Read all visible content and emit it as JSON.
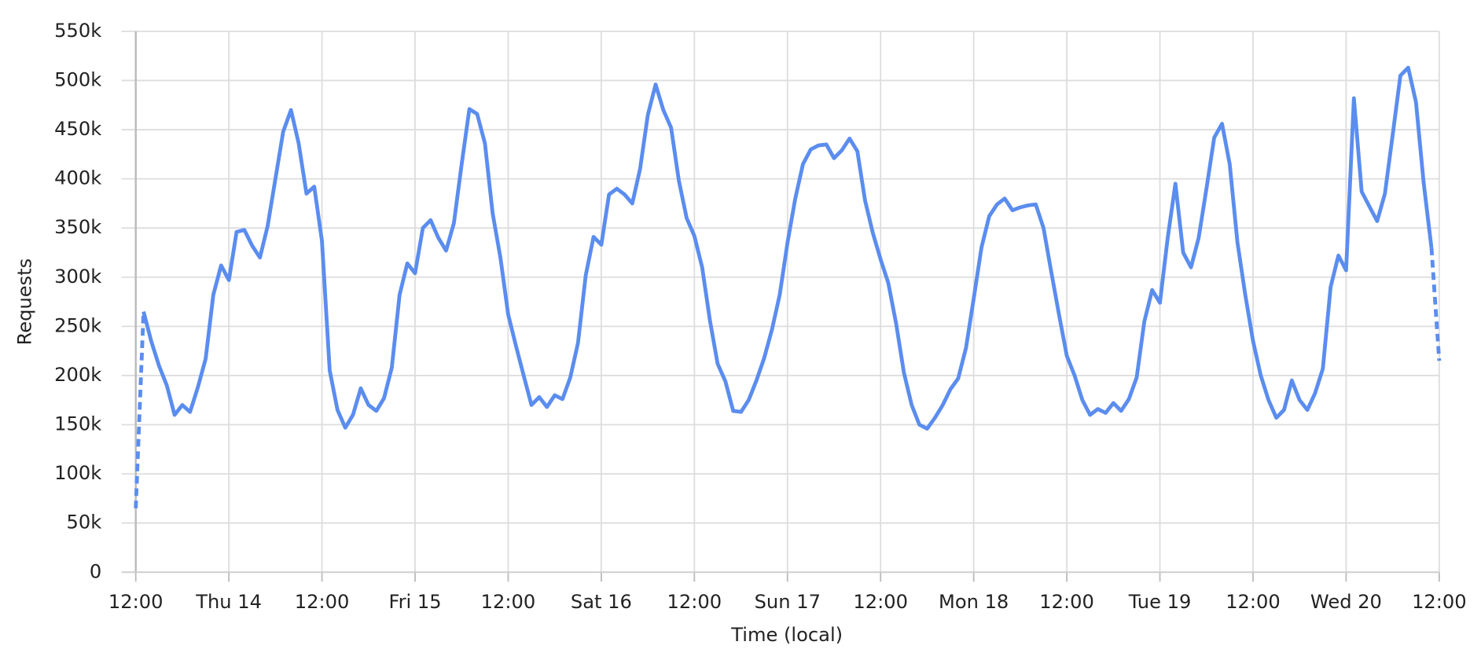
{
  "chart_data": {
    "type": "line",
    "x_label": "Time (local)",
    "y_label": "Requests",
    "x": [
      0,
      1,
      2,
      3,
      4,
      5,
      6,
      7,
      8,
      9,
      10,
      11,
      12,
      13,
      14,
      15,
      16,
      17,
      18,
      19,
      20,
      21,
      22,
      23,
      24,
      25,
      26,
      27,
      28,
      29,
      30,
      31,
      32,
      33,
      34,
      35,
      36,
      37,
      38,
      39,
      40,
      41,
      42,
      43,
      44,
      45,
      46,
      47,
      48,
      49,
      50,
      51,
      52,
      53,
      54,
      55,
      56,
      57,
      58,
      59,
      60,
      61,
      62,
      63,
      64,
      65,
      66,
      67,
      68,
      69,
      70,
      71,
      72,
      73,
      74,
      75,
      76,
      77,
      78,
      79,
      80,
      81,
      82,
      83,
      84,
      85,
      86,
      87,
      88,
      89,
      90,
      91,
      92,
      93,
      94,
      95,
      96,
      97,
      98,
      99,
      100,
      101,
      102,
      103,
      104,
      105,
      106,
      107,
      108,
      109,
      110,
      111,
      112,
      113,
      114,
      115,
      116,
      117,
      118,
      119,
      120,
      121,
      122,
      123,
      124,
      125,
      126,
      127,
      128,
      129,
      130,
      131,
      132,
      133,
      134,
      135,
      136,
      137,
      138,
      139,
      140,
      141,
      142,
      143,
      144,
      145,
      146,
      147,
      148,
      149,
      150,
      151,
      152,
      153,
      154,
      155,
      156,
      157,
      158,
      159,
      160,
      161,
      162,
      163,
      164,
      165,
      166,
      167,
      168
    ],
    "series": [
      {
        "name": "Requests",
        "color": "#5b8def",
        "values": [
          65000,
          265000,
          235000,
          210000,
          190000,
          160000,
          170000,
          163000,
          188000,
          217000,
          282000,
          312000,
          297000,
          346000,
          348000,
          332000,
          320000,
          352000,
          400000,
          448000,
          470000,
          436000,
          385000,
          392000,
          337000,
          205000,
          165000,
          147000,
          160000,
          187000,
          170000,
          164000,
          177000,
          208000,
          282000,
          314000,
          304000,
          350000,
          358000,
          340000,
          327000,
          355000,
          415000,
          471000,
          466000,
          436000,
          365000,
          320000,
          262000,
          230000,
          200000,
          170000,
          178000,
          168000,
          180000,
          176000,
          198000,
          233000,
          302000,
          341000,
          333000,
          384000,
          390000,
          384000,
          375000,
          410000,
          465000,
          496000,
          470000,
          452000,
          398000,
          360000,
          342000,
          310000,
          256000,
          212000,
          194000,
          164000,
          163000,
          175000,
          195000,
          218000,
          247000,
          282000,
          335000,
          380000,
          415000,
          430000,
          434000,
          435000,
          421000,
          429000,
          441000,
          428000,
          378000,
          345000,
          318000,
          294000,
          253000,
          203000,
          170000,
          150000,
          146000,
          157000,
          170000,
          186000,
          197000,
          228000,
          278000,
          330000,
          362000,
          374000,
          380000,
          368000,
          371000,
          373000,
          374000,
          350000,
          305000,
          262000,
          220000,
          200000,
          175000,
          160000,
          166000,
          162000,
          172000,
          164000,
          176000,
          198000,
          255000,
          287000,
          274000,
          340000,
          395000,
          325000,
          310000,
          340000,
          390000,
          442000,
          456000,
          415000,
          335000,
          282000,
          235000,
          200000,
          175000,
          157000,
          165000,
          195000,
          175000,
          165000,
          182000,
          207000,
          290000,
          322000,
          307000,
          482000,
          387000,
          372000,
          357000,
          385000,
          445000,
          505000,
          513000,
          478000,
          395000,
          330000,
          215000
        ]
      }
    ],
    "dashed_ends": true,
    "xlim": [
      0,
      168
    ],
    "xticks": [
      {
        "value": 0,
        "label": "12:00"
      },
      {
        "value": 12,
        "label": "Thu 14"
      },
      {
        "value": 24,
        "label": "12:00"
      },
      {
        "value": 36,
        "label": "Fri 15"
      },
      {
        "value": 48,
        "label": "12:00"
      },
      {
        "value": 60,
        "label": "Sat 16"
      },
      {
        "value": 72,
        "label": "12:00"
      },
      {
        "value": 84,
        "label": "Sun 17"
      },
      {
        "value": 96,
        "label": "12:00"
      },
      {
        "value": 108,
        "label": "Mon 18"
      },
      {
        "value": 120,
        "label": "12:00"
      },
      {
        "value": 132,
        "label": "Tue 19"
      },
      {
        "value": 144,
        "label": "12:00"
      },
      {
        "value": 156,
        "label": "Wed 20"
      },
      {
        "value": 168,
        "label": "12:00"
      }
    ],
    "ylim": [
      0,
      550000
    ],
    "yticks": [
      0,
      {
        "value": 50000,
        "label": "50k"
      },
      {
        "value": 100000,
        "label": "100k"
      },
      {
        "value": 150000,
        "label": "150k"
      },
      {
        "value": 200000,
        "label": "200k"
      },
      {
        "value": 250000,
        "label": "250k"
      },
      {
        "value": 300000,
        "label": "300k"
      },
      {
        "value": 350000,
        "label": "350k"
      },
      {
        "value": 400000,
        "label": "400k"
      },
      {
        "value": 450000,
        "label": "450k"
      },
      {
        "value": 500000,
        "label": "500k"
      },
      {
        "value": 550000,
        "label": "550k"
      }
    ],
    "grid": true
  }
}
